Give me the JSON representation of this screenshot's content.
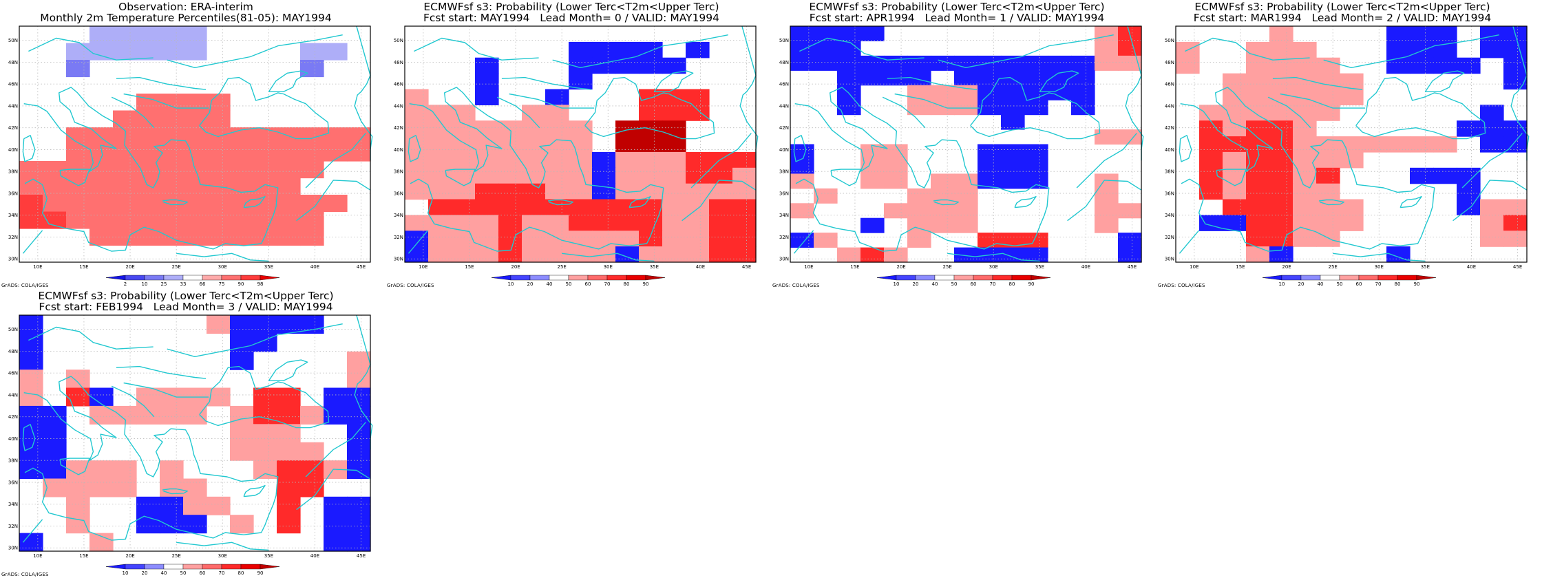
{
  "figure": {
    "colors": {
      "coast": "#22c8d0",
      "frame": "#000000",
      "grid": "#b8b8b8"
    },
    "credit": "GrADS: COLA/IGES",
    "lon_labels": [
      "10E",
      "15E",
      "20E",
      "25E",
      "30E",
      "35E",
      "40E",
      "45E"
    ],
    "lat_labels": [
      "30N",
      "32N",
      "34N",
      "36N",
      "38N",
      "40N",
      "42N",
      "44N",
      "46N",
      "48N",
      "50N"
    ]
  },
  "panels": [
    {
      "id": "obs",
      "title1": "Observation: ERA-interim",
      "title2": "Monthly 2m Temperature Percentiles(81-05): MAY1994",
      "colorbar": {
        "labels": [
          "2",
          "10",
          "25",
          "33",
          "66",
          "75",
          "90",
          "98"
        ],
        "colors": [
          "#1515e6",
          "#4848f0",
          "#7a7af4",
          "#aeaef8",
          "#ffffff",
          "#ffaaaa",
          "#ff7070",
          "#ff3c3c",
          "#e60000"
        ]
      },
      "grid": [
        "WWWLLLLLWWW....",
        "WWLLLLLLWWWWLL.",
        "WWMWWWWWWWWWMWW",
        "WWWWWWWWWWWWWWW",
        "WWWWWBBBBWWWWWW",
        "WWWWRRRRRWWWWWW",
        "WWRRRRRRRRRRRRR",
        "WWRRRRRRRRRRRRR",
        "RRRRRRRRRRRRRWW",
        "RRRRRRRRRRRRWWW",
        "SRRRRRRRRRRRRRW",
        "SSRRRRRRRRRRRWW",
        "WWWRRRRRRRRRRWW",
        "WWWWWWWWWWWWWWW"
      ]
    },
    {
      "id": "lead0",
      "title1": "ECMWFsf s3: Probability (Lower Terc<T2m<Upper Terc)",
      "title2": "Fcst start: MAY1994   Lead Month= 0 / VALID: MAY1994",
      "colorbar": {
        "labels": [
          "10",
          "20",
          "40",
          "50",
          "60",
          "70",
          "80",
          "90"
        ],
        "colors": [
          "#1a1aff",
          "#4444ff",
          "#8c8cff",
          "#ffffff",
          "#ffa0a0",
          "#ff6a6a",
          "#ff2a2a",
          "#e80000",
          "#c00000"
        ]
      },
      "grid": [
        "WWWWWWLWWWWWWWW",
        "WWWWWWLBBBBWBWL",
        "WWWBWWWBBBBBWWL",
        "WWWBWWWBWWWWWWW",
        "PWWBWWBWWWRRRWW",
        "PPPWWPPWWWRRRWW",
        "PPPPPPPPWDDDWWW",
        "PPPPPPPPWDDDWWW",
        "PPPPPPPPBPPPRRR",
        "PPPPPPPPBPPPRRP",
        "PPPRRRPPBPPPPPP",
        "WRRRRRRRRRRPPRR",
        "PPPPRPPRRRRPPRR",
        "BPPPRPPPPPRPPRR",
        "BPPPRPPPPBPPPRR"
      ]
    },
    {
      "id": "lead1",
      "title1": "ECMWFsf s3: Probability (Lower Terc<T2m<Upper Terc)",
      "title2": "Fcst start: APR1994   Lead Month= 1 / VALID: MAY1994",
      "colorbar": {
        "labels": [
          "10",
          "20",
          "40",
          "50",
          "60",
          "70",
          "80",
          "90"
        ],
        "colors": [
          "#1a1aff",
          "#4444ff",
          "#8c8cff",
          "#ffffff",
          "#ffa0a0",
          "#ff6a6a",
          "#ff2a2a",
          "#e80000",
          "#c00000"
        ]
      },
      "grid": [
        "BBBBWWWWWWWWWPR",
        "BBBWWWWWWWWWWPR",
        "BBBBBBBBBBBBBPP",
        "WWBBBBWBBBBBBWW",
        "WWBWWPPPBBBBBWW",
        "WWBWWPPPBBBWBWW",
        "WWWWWWWWWBWWWWW",
        "WWWWWWWWWWWWWPP",
        "BWWPPWWWBBBWWWW",
        "BWWPPWWWBBBWWWW",
        "PWWPPWPPBBBWWPW",
        "WPWWWPPPWWWWWPW",
        "PWWWPPPPWWWWWPP",
        "WWWBWPPPWWWWWPW",
        "BPWWWPWWRRRWWWB",
        "WWPRPWWBBBBWWWB"
      ]
    },
    {
      "id": "lead2",
      "title1": "ECMWFsf s3: Probability (Lower Terc<T2m<Upper Terc)",
      "title2": "Fcst start: MAR1994   Lead Month= 2 / VALID: MAY1994",
      "colorbar": {
        "labels": [
          "10",
          "20",
          "40",
          "50",
          "60",
          "70",
          "80",
          "90"
        ],
        "colors": [
          "#1a1aff",
          "#4444ff",
          "#8c8cff",
          "#ffffff",
          "#ffa0a0",
          "#ff6a6a",
          "#ff2a2a",
          "#e80000",
          "#c00000"
        ]
      },
      "grid": [
        "WWWWPWWWWBBBWBB",
        "PWWPPPWWWBBBWBB",
        "PWWPPPPWWBBBBWB",
        "WWPPPPPPWWWWWWB",
        "WWPPPPPPWWWWWWW",
        "WPPPPPPWWWWWWBW",
        "WRPRRPWWWWWWBBB",
        "WRRRRPPPPPPPWBB",
        "WRPRRPPPWWWWWWW",
        "WRPRRPRWWWBBBWW",
        "WRPRRPPWWWWWBWW",
        "WWRRRPPPWWWWBPP",
        "WBBRRPPPWWWWWPR",
        "WWWRRPPWWWWWWPP",
        "WWWPBWWWWBWWWWW"
      ]
    },
    {
      "id": "lead3",
      "title1": "ECMWFsf s3: Probability (Lower Terc<T2m<Upper Terc)",
      "title2": "Fcst start: FEB1994   Lead Month= 3 / VALID: MAY1994",
      "colorbar": {
        "labels": [
          "10",
          "20",
          "40",
          "50",
          "60",
          "70",
          "80",
          "90"
        ],
        "colors": [
          "#1a1aff",
          "#4444ff",
          "#8c8cff",
          "#ffffff",
          "#ffa0a0",
          "#ff6a6a",
          "#ff2a2a",
          "#e80000",
          "#c00000"
        ]
      },
      "grid": [
        "BWWWWWWWPBBBBWW",
        "BWWWWWWWWBBWWWW",
        "BWWWWWWWWBWWWWP",
        "PWPWWWWWWWWWWWP",
        "PWRBWPPPPWRRWBB",
        "BBWPPPPPWPRRPBB",
        "BBWWWWWWWPPPWWB",
        "BBWWWWWWWPPPPWB",
        "BBPPPWPWWWPRRPB",
        "WPPPPWPPWWWRRWW",
        "WWPWWBBPPWWRWBB",
        "WWPWWBBBWPWRWBB",
        "BWWPWWWWWWWWWBB"
      ]
    }
  ]
}
